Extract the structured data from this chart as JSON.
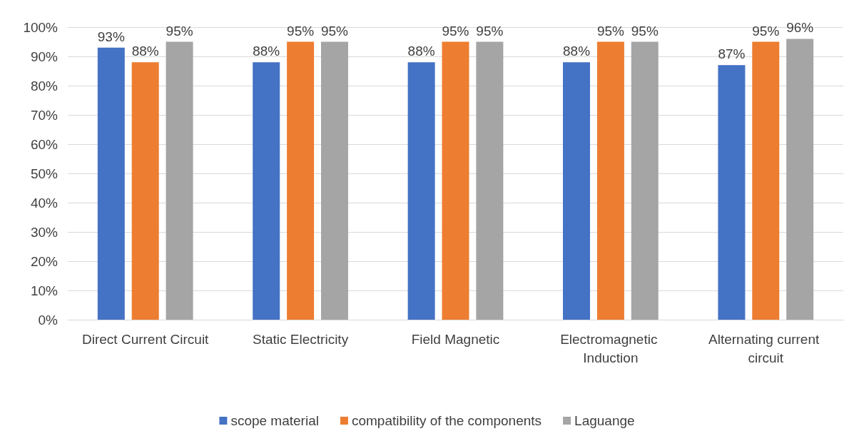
{
  "chart_data": {
    "type": "bar",
    "categories": [
      "Direct Current Circuit",
      "Static Electricity",
      "Field Magnetic",
      "Electromagnetic Induction",
      "Alternating current circuit"
    ],
    "series": [
      {
        "name": "scope material",
        "color": "#4472c4",
        "values": [
          93,
          88,
          88,
          88,
          87
        ],
        "value_labels": [
          "93%",
          "88%",
          "88%",
          "88%",
          "87%"
        ]
      },
      {
        "name": "compatibility of the components",
        "color": "#ed7d31",
        "values": [
          88,
          95,
          95,
          95,
          95
        ],
        "value_labels": [
          "88%",
          "95%",
          "95%",
          "95%",
          "95%"
        ]
      },
      {
        "name": "Laguange",
        "color": "#a5a5a5",
        "values": [
          95,
          95,
          95,
          95,
          96
        ],
        "value_labels": [
          "95%",
          "95%",
          "95%",
          "95%",
          "96%"
        ]
      }
    ],
    "ylim": [
      0,
      100
    ],
    "yticks": [
      {
        "value": 0,
        "label": "0%"
      },
      {
        "value": 10,
        "label": "10%"
      },
      {
        "value": 20,
        "label": "20%"
      },
      {
        "value": 30,
        "label": "30%"
      },
      {
        "value": 40,
        "label": "40%"
      },
      {
        "value": 50,
        "label": "50%"
      },
      {
        "value": 60,
        "label": "60%"
      },
      {
        "value": 70,
        "label": "70%"
      },
      {
        "value": 80,
        "label": "80%"
      },
      {
        "value": 90,
        "label": "90%"
      },
      {
        "value": 100,
        "label": "100%"
      }
    ],
    "grid": "y",
    "legend": "bottom"
  }
}
